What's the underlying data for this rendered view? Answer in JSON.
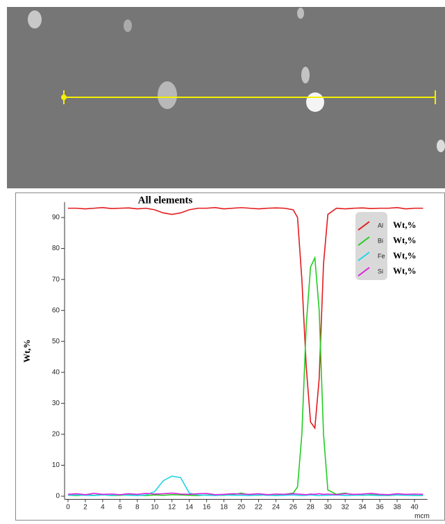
{
  "chart_data": {
    "type": "line",
    "title": "All elements",
    "y_label": "Wt,%",
    "x_unit": "mcm",
    "x": [
      0,
      1,
      2,
      3,
      4,
      5,
      6,
      7,
      8,
      9,
      10,
      11,
      12,
      13,
      14,
      15,
      16,
      17,
      18,
      19,
      20,
      21,
      22,
      23,
      24,
      25,
      26,
      26.5,
      27,
      27.5,
      28,
      28.5,
      29,
      29.5,
      30,
      31,
      32,
      33,
      34,
      35,
      36,
      37,
      38,
      39,
      40,
      41
    ],
    "series": [
      {
        "name": "Al",
        "color": "#e31a1c",
        "values": [
          93,
          93,
          92.8,
          93,
          93.2,
          92.9,
          93,
          93.1,
          92.8,
          93,
          92.5,
          91.5,
          91,
          91.5,
          92.5,
          93,
          93,
          93.2,
          92.8,
          93,
          93.2,
          93,
          92.8,
          93,
          93.1,
          93,
          92.5,
          90,
          70,
          42,
          24,
          22,
          38,
          75,
          91,
          93,
          92.8,
          93,
          93.1,
          92.9,
          93,
          93,
          93.2,
          92.8,
          93,
          93
        ]
      },
      {
        "name": "Bi",
        "color": "#22cc22",
        "values": [
          0.3,
          0.2,
          0.4,
          0.3,
          0.5,
          0.2,
          0.3,
          0.4,
          0.3,
          0.2,
          0.4,
          0.3,
          0.5,
          0.4,
          0.3,
          0.2,
          0.4,
          0.3,
          0.3,
          0.5,
          1,
          0.4,
          0.3,
          0.5,
          0.3,
          0.6,
          1,
          3,
          20,
          55,
          74,
          77,
          60,
          20,
          2,
          0.6,
          1,
          0.4,
          0.3,
          0.5,
          0.3,
          0.2,
          0.4,
          0.3,
          0.3,
          0.2
        ]
      },
      {
        "name": "Fe",
        "color": "#22d3e6",
        "values": [
          0.3,
          0.4,
          0.3,
          0.2,
          0.4,
          0.3,
          0.5,
          0.3,
          0.2,
          0.4,
          1.5,
          5,
          6.5,
          6,
          1,
          0.4,
          0.3,
          0.2,
          0.4,
          0.3,
          0.3,
          0.2,
          0.4,
          0.3,
          0.2,
          0.3,
          0.4,
          0.3,
          0.2,
          0.3,
          0.4,
          0.3,
          0.2,
          0.3,
          0.3,
          0.4,
          0.2,
          0.3,
          0.4,
          0.3,
          0.2,
          0.3,
          0.4,
          0.3,
          0.2,
          0.3
        ]
      },
      {
        "name": "Si",
        "color": "#dd22dd",
        "values": [
          0.6,
          0.8,
          0.5,
          0.9,
          0.6,
          0.7,
          0.5,
          0.8,
          0.6,
          0.9,
          0.7,
          0.8,
          1,
          0.7,
          0.6,
          0.8,
          0.9,
          0.5,
          0.6,
          0.8,
          0.7,
          0.6,
          0.8,
          0.5,
          0.7,
          0.6,
          0.8,
          0.7,
          0.6,
          0.5,
          0.7,
          0.6,
          0.8,
          0.6,
          0.7,
          0.5,
          0.8,
          0.6,
          0.7,
          0.9,
          0.6,
          0.5,
          0.8,
          0.6,
          0.7,
          0.6
        ]
      }
    ],
    "xlim": [
      0,
      41.5
    ],
    "xticks": [
      0,
      2,
      4,
      6,
      8,
      10,
      12,
      14,
      16,
      18,
      20,
      22,
      24,
      26,
      28,
      30,
      32,
      34,
      36,
      38,
      40
    ],
    "ylim": [
      -1,
      95
    ],
    "yticks": [
      0,
      10,
      20,
      30,
      40,
      50,
      60,
      70,
      80,
      90
    ]
  }
}
